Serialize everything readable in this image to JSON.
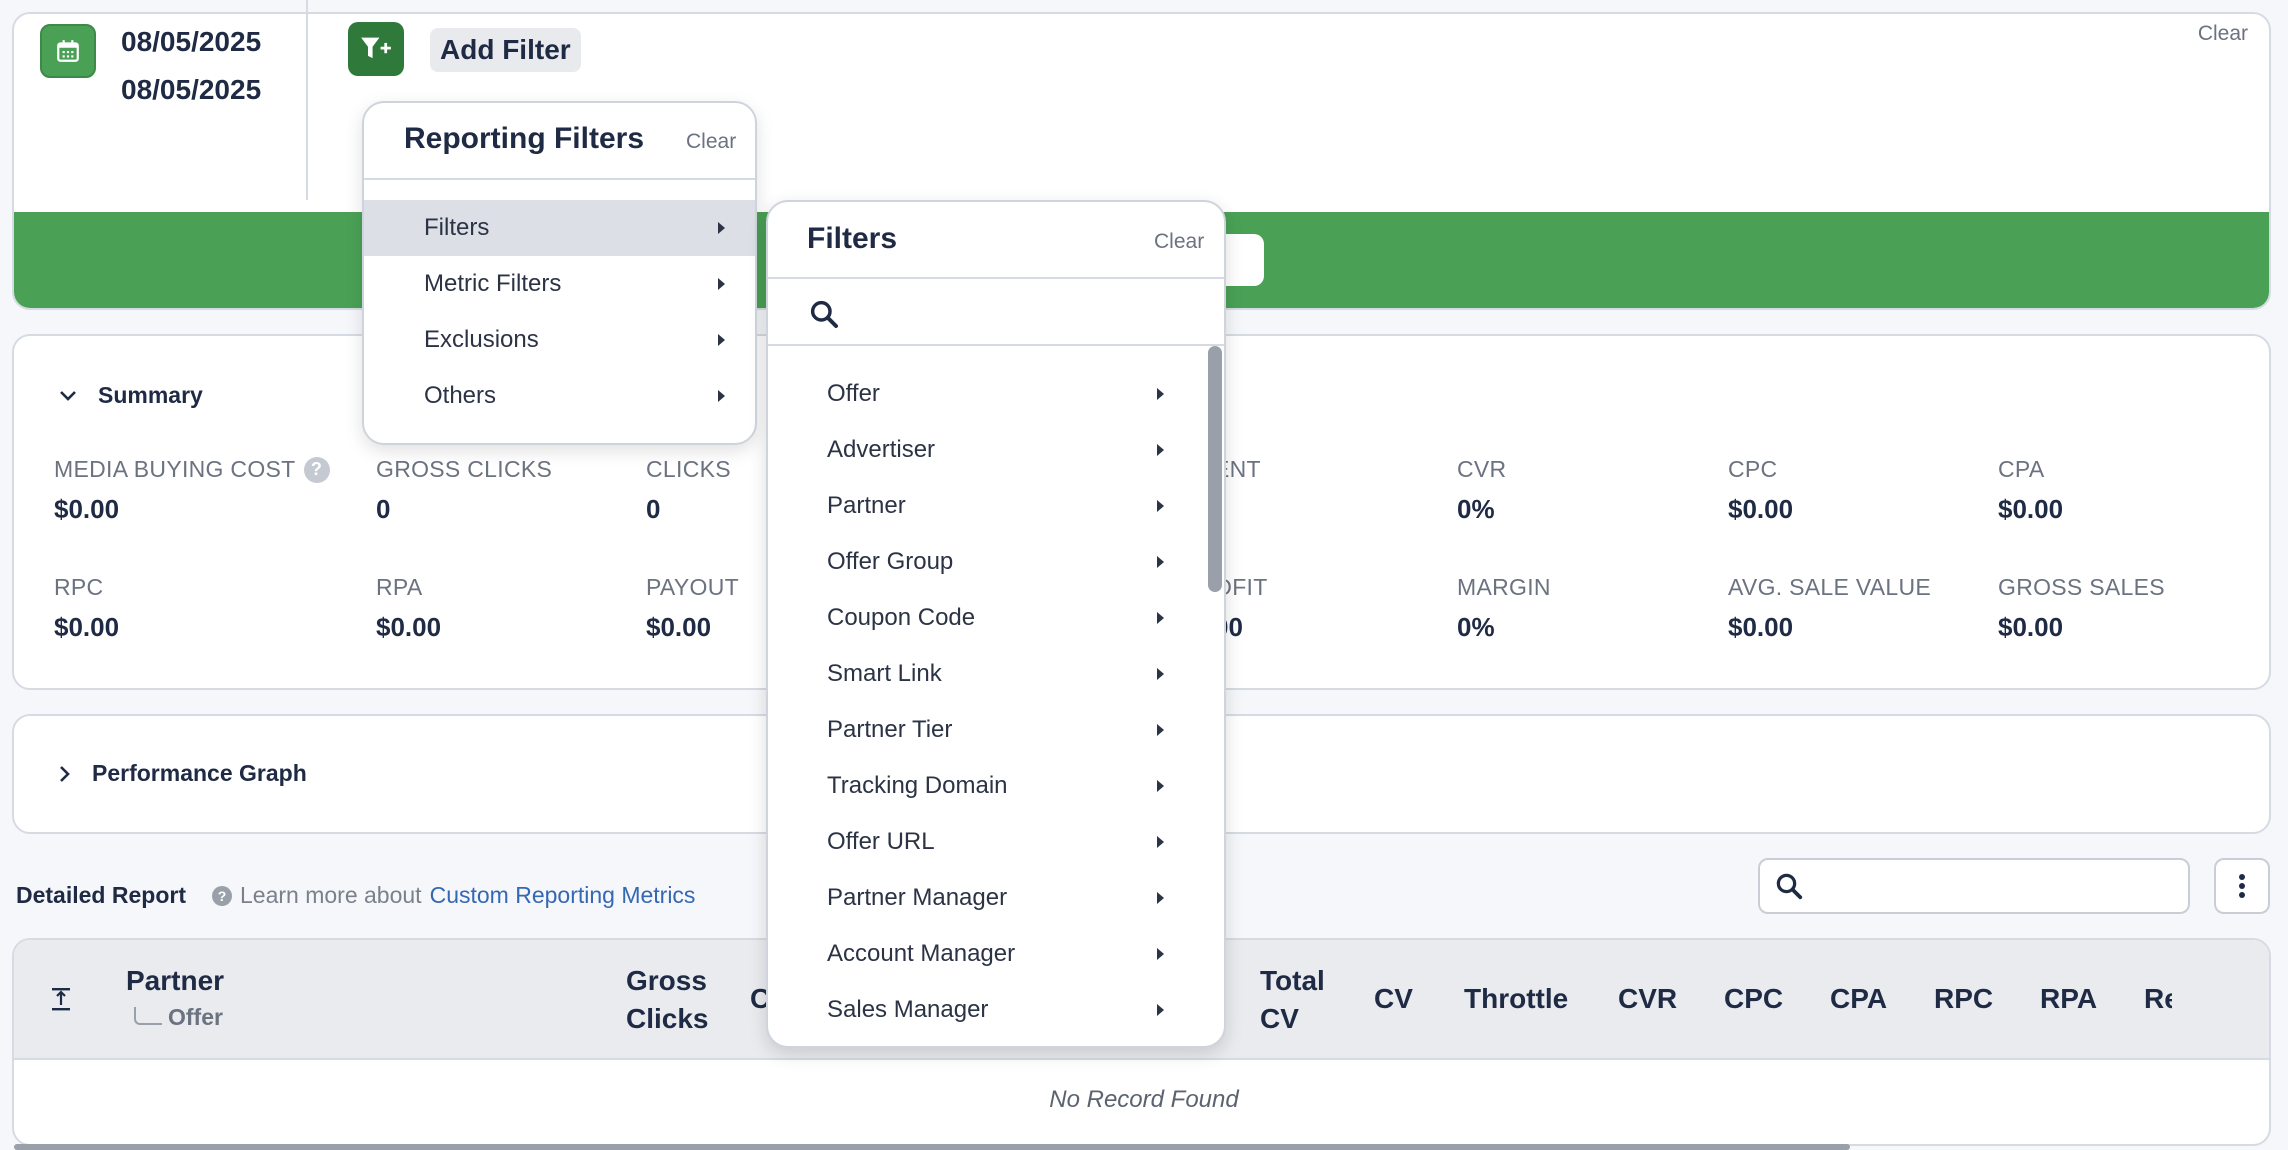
{
  "date_range": {
    "start": "08/05/2025",
    "end": "08/05/2025"
  },
  "toolbar": {
    "add_filter_label": "Add Filter",
    "clear_label": "Clear"
  },
  "summary": {
    "title": "Summary",
    "metrics_row1": [
      {
        "label": "MEDIA BUYING COST",
        "value": "$0.00"
      },
      {
        "label": "GROSS CLICKS",
        "value": "0"
      },
      {
        "label": "CLICKS",
        "value": "0"
      },
      {
        "label": "ENT",
        "value": ""
      },
      {
        "label": "CVR",
        "value": "0%"
      },
      {
        "label": "CPC",
        "value": "$0.00"
      },
      {
        "label": "CPA",
        "value": "$0.00"
      }
    ],
    "metrics_row2": [
      {
        "label": "RPC",
        "value": "$0.00"
      },
      {
        "label": "RPA",
        "value": "$0.00"
      },
      {
        "label": "PAYOUT",
        "value": "$0.00"
      },
      {
        "label": "OFIT",
        "value": "00"
      },
      {
        "label": "MARGIN",
        "value": "0%"
      },
      {
        "label": "AVG. SALE VALUE",
        "value": "$0.00"
      },
      {
        "label": "GROSS SALES",
        "value": "$0.00"
      }
    ],
    "help_glyph": "?"
  },
  "performance_graph": {
    "title": "Performance Graph"
  },
  "report": {
    "title": "Detailed Report",
    "learn_more_prefix": "Learn more about",
    "learn_more_link": "Custom Reporting Metrics",
    "partner_header": "Partner",
    "offer_subheader": "Offer",
    "columns": [
      "Gross",
      "Clicks",
      "C",
      "Total",
      "CV",
      "CV",
      "Throttle",
      "CVR",
      "CPC",
      "CPA",
      "RPC",
      "RPA",
      "Re"
    ],
    "empty_message": "No Record Found"
  },
  "reporting_filters": {
    "title": "Reporting Filters",
    "clear_label": "Clear",
    "items": [
      "Filters",
      "Metric Filters",
      "Exclusions",
      "Others"
    ]
  },
  "filters_menu": {
    "title": "Filters",
    "clear_label": "Clear",
    "items": [
      "Offer",
      "Advertiser",
      "Partner",
      "Offer Group",
      "Coupon Code",
      "Smart Link",
      "Partner Tier",
      "Tracking Domain",
      "Offer URL",
      "Partner Manager",
      "Account Manager",
      "Sales Manager"
    ]
  },
  "colors": {
    "accent_green": "#4aa156",
    "dark_green": "#2f7a3b",
    "link_blue": "#3568b3"
  }
}
